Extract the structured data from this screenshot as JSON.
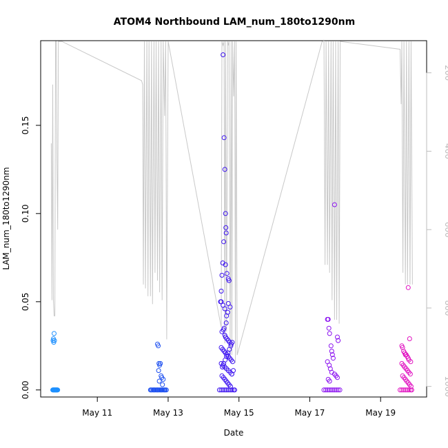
{
  "chart_data": {
    "type": "scatter",
    "title": "ATOM4 Northbound LAM_num_180to1290nm",
    "xlabel": "Date",
    "ylabel": "LAM_num_180to1290nm",
    "x_ticks": [
      "May 11",
      "May 13",
      "May 15",
      "May 17",
      "May 19"
    ],
    "x_tick_days": [
      11,
      13,
      15,
      17,
      19
    ],
    "xlim": [
      9.4,
      20.3
    ],
    "y_ticks": [
      "0.00",
      "0.05",
      "0.10",
      "0.15"
    ],
    "y_tick_values": [
      0.0,
      0.05,
      0.1,
      0.15
    ],
    "ylim": [
      -0.004,
      0.198
    ],
    "y2_ticks": [
      "200",
      "400",
      "600",
      "800",
      "1000"
    ],
    "y2_tick_values": [
      200,
      400,
      600,
      800,
      1000
    ],
    "y2_reversed": true,
    "y2lim": [
      1027,
      118
    ],
    "colors": {
      "axis": "#000000",
      "secondary_axis": "#bdbdbd",
      "altitude_line": "#c8c8c8"
    },
    "series": [
      {
        "color": "#1e90ff",
        "x": [
          9.74,
          9.75,
          9.76,
          9.77,
          9.78,
          9.79,
          9.8,
          9.81,
          9.82,
          9.83,
          9.84,
          9.85,
          9.86,
          9.87,
          9.88,
          9.75,
          9.76,
          9.77,
          9.78,
          9.79
        ],
        "y": [
          0.0,
          0.0,
          0.0,
          0.0,
          0.0,
          0.0,
          0.0,
          0.0,
          0.0,
          0.0,
          0.0,
          0.0,
          0.0,
          0.0,
          0.0,
          0.028,
          0.029,
          0.027,
          0.032,
          0.028
        ]
      },
      {
        "color": "#1e50f0",
        "x": [
          12.5,
          12.52,
          12.55,
          12.58,
          12.6,
          12.62,
          12.65,
          12.68,
          12.7,
          12.72,
          12.75,
          12.78,
          12.8,
          12.82,
          12.85,
          12.88,
          12.9,
          12.92,
          12.95,
          12.7,
          12.72,
          12.74,
          12.76,
          12.78,
          12.8,
          12.82,
          12.84,
          12.86,
          12.73,
          12.75
        ],
        "y": [
          0.0,
          0.0,
          0.0,
          0.0,
          0.0,
          0.0,
          0.0,
          0.0,
          0.0,
          0.0,
          0.0,
          0.0,
          0.0,
          0.0,
          0.0,
          0.0,
          0.0,
          0.0,
          0.0,
          0.026,
          0.025,
          0.015,
          0.014,
          0.015,
          0.008,
          0.007,
          0.003,
          0.006,
          0.011,
          0.005
        ]
      },
      {
        "color": "#3a10f0",
        "x": [
          14.45,
          14.5,
          14.55,
          14.6,
          14.65,
          14.7,
          14.75,
          14.8,
          14.85,
          14.88,
          14.55,
          14.58,
          14.6,
          14.62,
          14.63,
          14.64,
          14.57,
          14.54,
          14.52,
          14.5,
          14.48,
          14.62,
          14.66,
          14.7,
          14.72,
          14.5,
          14.55,
          14.6,
          14.65,
          14.7,
          14.75,
          14.68,
          14.64,
          14.58,
          14.52,
          14.56,
          14.6,
          14.62,
          14.66,
          14.7,
          14.74,
          14.78,
          14.5,
          14.54,
          14.58,
          14.62,
          14.66,
          14.7,
          14.74,
          14.78,
          14.82,
          14.5,
          14.55,
          14.6,
          14.65,
          14.7,
          14.75,
          14.8,
          14.52,
          14.56,
          14.6,
          14.64,
          14.68,
          14.72,
          14.76,
          14.8,
          14.84,
          14.53,
          14.57,
          14.61,
          14.65,
          14.69,
          14.73,
          14.77,
          14.81
        ],
        "y": [
          0.0,
          0.0,
          0.0,
          0.0,
          0.0,
          0.0,
          0.0,
          0.0,
          0.0,
          0.0,
          0.19,
          0.143,
          0.125,
          0.1,
          0.092,
          0.089,
          0.084,
          0.072,
          0.065,
          0.056,
          0.05,
          0.071,
          0.066,
          0.063,
          0.062,
          0.05,
          0.048,
          0.046,
          0.042,
          0.049,
          0.047,
          0.044,
          0.038,
          0.035,
          0.033,
          0.034,
          0.031,
          0.03,
          0.029,
          0.028,
          0.027,
          0.026,
          0.024,
          0.023,
          0.022,
          0.021,
          0.02,
          0.019,
          0.018,
          0.017,
          0.016,
          0.015,
          0.014,
          0.013,
          0.012,
          0.011,
          0.01,
          0.009,
          0.008,
          0.007,
          0.006,
          0.005,
          0.004,
          0.003,
          0.002,
          0.009,
          0.011,
          0.013,
          0.015,
          0.017,
          0.019,
          0.021,
          0.023,
          0.025,
          0.027
        ]
      },
      {
        "color": "#8a10f0",
        "x": [
          17.4,
          17.45,
          17.5,
          17.55,
          17.6,
          17.65,
          17.7,
          17.75,
          17.8,
          17.85,
          17.5,
          17.52,
          17.54,
          17.56,
          17.7,
          17.78,
          17.8,
          17.6,
          17.62,
          17.64,
          17.66,
          17.5,
          17.55,
          17.58,
          17.62,
          17.7,
          17.74,
          17.78,
          17.52,
          17.56
        ],
        "y": [
          0.0,
          0.0,
          0.0,
          0.0,
          0.0,
          0.0,
          0.0,
          0.0,
          0.0,
          0.0,
          0.04,
          0.04,
          0.035,
          0.032,
          0.105,
          0.03,
          0.028,
          0.025,
          0.022,
          0.02,
          0.018,
          0.016,
          0.014,
          0.012,
          0.01,
          0.009,
          0.008,
          0.007,
          0.006,
          0.005
        ]
      },
      {
        "color": "#e010c0",
        "x": [
          19.55,
          19.6,
          19.65,
          19.7,
          19.75,
          19.8,
          19.85,
          19.88,
          19.78,
          19.82,
          19.6,
          19.62,
          19.65,
          19.68,
          19.7,
          19.72,
          19.75,
          19.78,
          19.8,
          19.85,
          19.6,
          19.64,
          19.68,
          19.72,
          19.76,
          19.8,
          19.84,
          19.62,
          19.66,
          19.7,
          19.74,
          19.78,
          19.82,
          19.86
        ],
        "y": [
          0.0,
          0.0,
          0.0,
          0.0,
          0.0,
          0.0,
          0.0,
          0.0,
          0.058,
          0.029,
          0.025,
          0.024,
          0.022,
          0.021,
          0.02,
          0.02,
          0.019,
          0.018,
          0.017,
          0.016,
          0.015,
          0.014,
          0.013,
          0.012,
          0.011,
          0.01,
          0.009,
          0.008,
          0.007,
          0.006,
          0.005,
          0.004,
          0.003,
          0.002
        ]
      }
    ],
    "altitude_line": {
      "x": [
        9.7,
        9.72,
        9.74,
        9.76,
        9.78,
        9.8,
        9.82,
        9.84,
        9.86,
        9.88,
        9.9,
        9.92,
        9.94,
        10.0,
        12.25,
        12.28,
        12.3,
        12.33,
        12.36,
        12.4,
        12.43,
        12.46,
        12.5,
        12.53,
        12.56,
        12.6,
        12.63,
        12.66,
        12.7,
        12.73,
        12.76,
        12.8,
        12.83,
        12.86,
        12.9,
        12.93,
        12.96,
        13.0,
        14.5,
        14.52,
        14.55,
        14.58,
        14.6,
        14.62,
        14.65,
        14.68,
        14.7,
        14.72,
        14.75,
        14.78,
        14.8,
        14.82,
        14.85,
        14.88,
        14.9,
        14.92,
        14.95,
        17.35,
        17.38,
        17.4,
        17.43,
        17.46,
        17.5,
        17.53,
        17.56,
        17.6,
        17.63,
        17.66,
        17.7,
        17.73,
        17.76,
        17.8,
        17.83,
        17.86,
        19.55,
        19.58,
        19.6,
        19.63,
        19.66,
        19.7,
        19.73,
        19.76,
        19.8,
        19.83,
        19.86,
        19.9
      ],
      "y": [
        380,
        780,
        230,
        780,
        820,
        820,
        120,
        120,
        420,
        600,
        120,
        120,
        120,
        120,
        220,
        230,
        740,
        120,
        750,
        120,
        770,
        120,
        770,
        120,
        790,
        120,
        710,
        120,
        730,
        120,
        760,
        120,
        780,
        120,
        310,
        120,
        880,
        120,
        850,
        120,
        130,
        120,
        890,
        120,
        860,
        120,
        130,
        120,
        920,
        120,
        920,
        120,
        260,
        120,
        940,
        120,
        920,
        120,
        120,
        100,
        690,
        120,
        690,
        120,
        710,
        120,
        780,
        120,
        830,
        120,
        830,
        120,
        840,
        120,
        140,
        280,
        120,
        710,
        120,
        740,
        120,
        740,
        120,
        740,
        120,
        740
      ]
    }
  }
}
